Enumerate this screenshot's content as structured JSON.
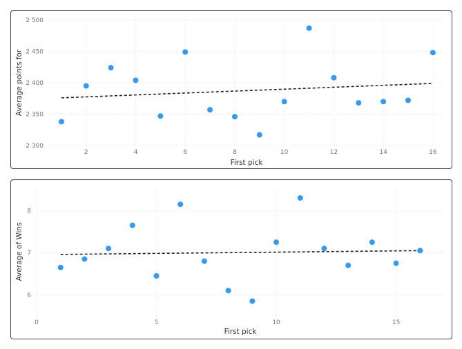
{
  "chart_data": [
    {
      "type": "scatter",
      "title": "",
      "xlabel": "First pick",
      "ylabel": "Average points for",
      "xlim": [
        0.5,
        16.45
      ],
      "ylim": [
        2300,
        2500
      ],
      "xticks": [
        2,
        4,
        6,
        8,
        10,
        12,
        14,
        16
      ],
      "xtick_labels": [
        "2",
        "4",
        "6",
        "8",
        "10",
        "12",
        "14",
        "16"
      ],
      "yticks": [
        2300,
        2350,
        2400,
        2450,
        2500
      ],
      "ytick_labels": [
        "2 300",
        "2 350",
        "2 400",
        "2 450",
        "2 500"
      ],
      "grid": true,
      "point_color": "#3399F3",
      "x": [
        1,
        2,
        3,
        4,
        5,
        6,
        7,
        8,
        9,
        10,
        11,
        12,
        13,
        14,
        15,
        16
      ],
      "y": [
        2338,
        2395,
        2424,
        2404,
        2347,
        2449,
        2357,
        2346,
        2317,
        2370,
        2487,
        2408,
        2368,
        2370,
        2372,
        2448
      ],
      "trendline": {
        "x": [
          1,
          16
        ],
        "y": [
          2376,
          2399
        ]
      }
    },
    {
      "type": "scatter",
      "title": "",
      "xlabel": "First pick",
      "ylabel": "Average of Wins",
      "xlim": [
        0,
        17
      ],
      "ylim": [
        5.5,
        8.53
      ],
      "xticks": [
        0,
        5,
        10,
        15
      ],
      "xtick_labels": [
        "0",
        "5",
        "10",
        "15"
      ],
      "yticks": [
        6,
        7,
        8
      ],
      "ytick_labels": [
        "6",
        "7",
        "8"
      ],
      "grid": true,
      "point_color": "#3399F3",
      "x": [
        1,
        2,
        3,
        4,
        5,
        6,
        7,
        8,
        9,
        10,
        11,
        12,
        13,
        14,
        15,
        16
      ],
      "y": [
        6.65,
        6.85,
        7.1,
        7.65,
        6.45,
        8.15,
        6.8,
        6.1,
        5.85,
        7.25,
        8.3,
        7.1,
        6.7,
        7.25,
        6.75,
        7.05
      ],
      "trendline": {
        "x": [
          1,
          16
        ],
        "y": [
          6.96,
          7.05
        ]
      }
    }
  ]
}
